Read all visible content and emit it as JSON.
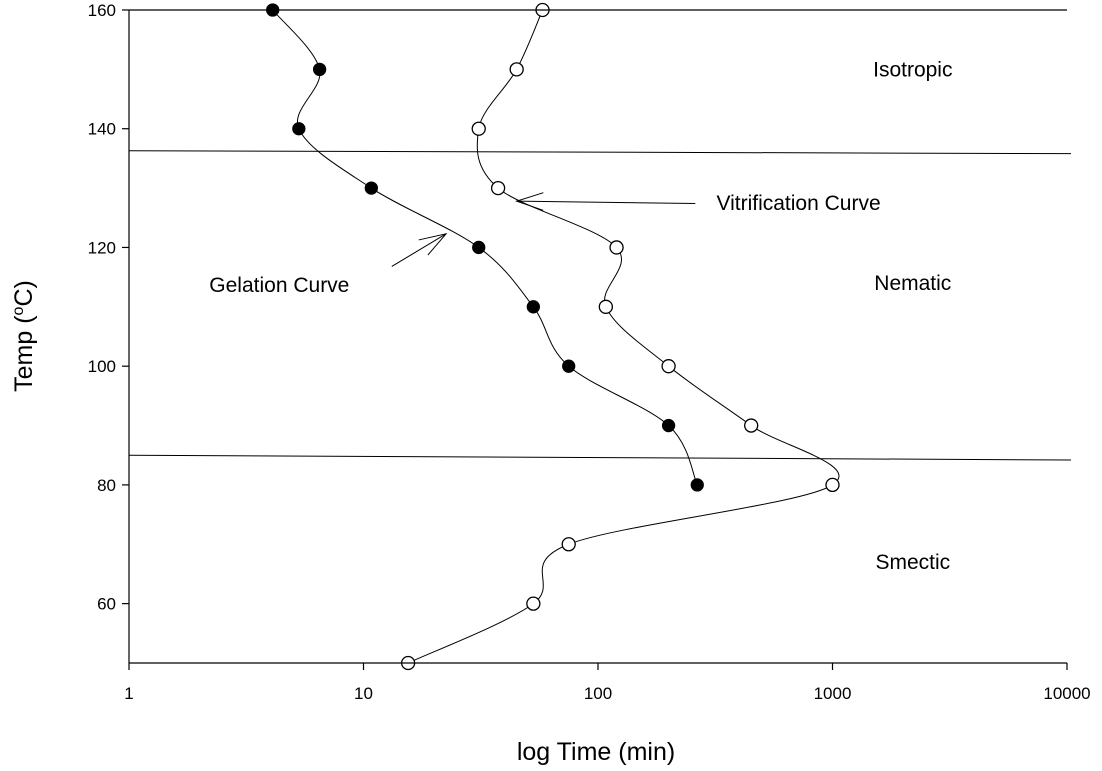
{
  "chart_data": {
    "type": "scatter",
    "xlabel": "log Time (min)",
    "ylabel_prefix": "Temp (",
    "ylabel_sup": "o",
    "ylabel_suffix": "C)",
    "x_scale": "log",
    "xlim": [
      1,
      10000
    ],
    "ylim": [
      50,
      160
    ],
    "x_ticks": [
      1,
      10,
      100,
      1000,
      10000
    ],
    "x_tick_labels": [
      "1",
      "10",
      "100",
      "1000",
      "10000"
    ],
    "y_ticks": [
      60,
      80,
      100,
      120,
      140,
      160
    ],
    "y_tick_labels": [
      "60",
      "80",
      "100",
      "120",
      "140",
      "160"
    ],
    "grid": false,
    "series": [
      {
        "name": "Gelation Curve",
        "marker": "filled-circle",
        "color": "#000000",
        "points": [
          {
            "x": 4.1,
            "y": 160
          },
          {
            "x": 6.5,
            "y": 150
          },
          {
            "x": 5.3,
            "y": 140
          },
          {
            "x": 10.8,
            "y": 130
          },
          {
            "x": 31,
            "y": 120
          },
          {
            "x": 53,
            "y": 110
          },
          {
            "x": 75,
            "y": 100
          },
          {
            "x": 200,
            "y": 90
          },
          {
            "x": 265,
            "y": 80
          }
        ]
      },
      {
        "name": "Vitrification Curve",
        "marker": "open-circle",
        "color": "#000000",
        "points": [
          {
            "x": 58,
            "y": 160
          },
          {
            "x": 45,
            "y": 150
          },
          {
            "x": 31,
            "y": 140
          },
          {
            "x": 37.5,
            "y": 130
          },
          {
            "x": 120,
            "y": 120
          },
          {
            "x": 108,
            "y": 110
          },
          {
            "x": 200,
            "y": 100
          },
          {
            "x": 450,
            "y": 90
          },
          {
            "x": 1000,
            "y": 80
          },
          {
            "x": 75,
            "y": 70
          },
          {
            "x": 53,
            "y": 60
          },
          {
            "x": 15.5,
            "y": 50
          }
        ]
      }
    ],
    "phase_boundaries": [
      {
        "y_left": 136.3,
        "y_right": 135.8
      },
      {
        "y_left": 85.0,
        "y_right": 84.2
      }
    ],
    "regions": [
      {
        "label": "Isotropic",
        "x": 2200,
        "y": 150
      },
      {
        "label": "Nematic",
        "x": 2200,
        "y": 114
      },
      {
        "label": "Smectic",
        "x": 2200,
        "y": 67
      }
    ],
    "annotations": [
      {
        "label": "Vitrification Curve",
        "text_x": 320,
        "text_y": 127.5,
        "arrow_from": {
          "x": 260,
          "y": 127.4
        },
        "arrow_to": {
          "x": 45,
          "y": 127.8
        }
      },
      {
        "label": "Gelation Curve",
        "text_x": 2.2,
        "text_y": 113.7,
        "arrow_from": {
          "x": 13.2,
          "y": 116.8
        },
        "arrow_to": {
          "x": 22.5,
          "y": 122.3
        }
      }
    ]
  }
}
